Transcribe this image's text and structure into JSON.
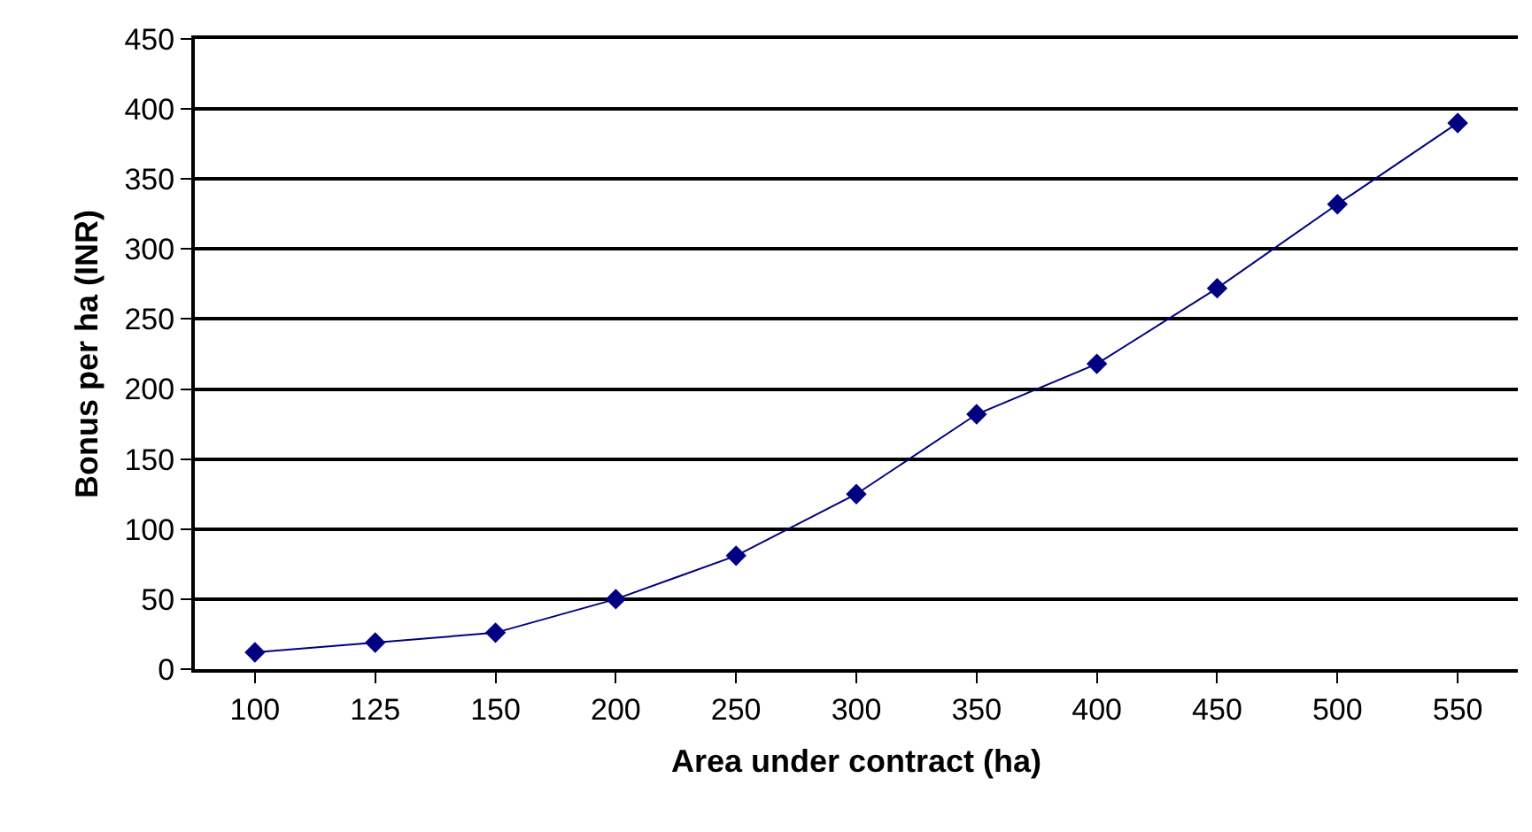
{
  "chart_data": {
    "type": "line",
    "xlabel": "Area under contract (ha)",
    "ylabel": "Bonus per ha (INR)",
    "categories": [
      "100",
      "125",
      "150",
      "200",
      "250",
      "300",
      "350",
      "400",
      "450",
      "500",
      "550"
    ],
    "series": [
      {
        "color": "#000080",
        "values": [
          12,
          19,
          26,
          50,
          81,
          125,
          182,
          218,
          272,
          332,
          390
        ]
      }
    ],
    "ylim": [
      0,
      450
    ],
    "yticks": [
      0,
      50,
      100,
      150,
      200,
      250,
      300,
      350,
      400,
      450
    ],
    "grid": "y",
    "marker": "diamond",
    "line_style": "solid"
  }
}
